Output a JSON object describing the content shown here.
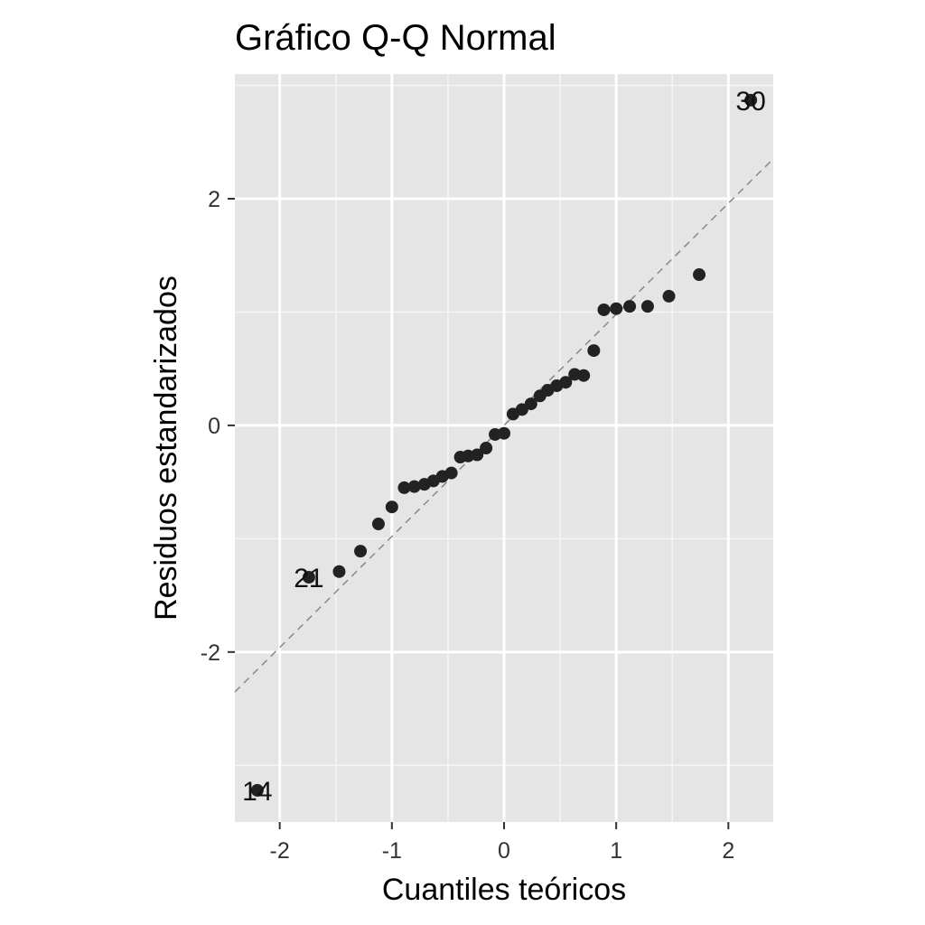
{
  "chart_data": {
    "type": "scatter",
    "title": "Gráfico Q-Q Normal",
    "xlabel": "Cuantiles teóricos",
    "ylabel": "Residuos estandarizados",
    "xlim": [
      -2.4,
      2.4
    ],
    "ylim": [
      -3.5,
      3.1
    ],
    "x_ticks": [
      -2,
      -1,
      0,
      1,
      2
    ],
    "y_ticks": [
      -2,
      0,
      2
    ],
    "x_tick_labels": [
      "-2",
      "-1",
      "0",
      "1",
      "2"
    ],
    "y_tick_labels": [
      "-2",
      "0",
      "2"
    ],
    "grid": true,
    "background": "#e5e5e5",
    "point_color": "#222222",
    "reference_line": {
      "slope": 0.98,
      "intercept": 0.0,
      "style": "dashed",
      "color": "#888888"
    },
    "points": [
      {
        "x": -2.2,
        "y": -3.22
      },
      {
        "x": -1.74,
        "y": -1.34
      },
      {
        "x": -1.47,
        "y": -1.29
      },
      {
        "x": -1.28,
        "y": -1.11
      },
      {
        "x": -1.12,
        "y": -0.87
      },
      {
        "x": -1.0,
        "y": -0.72
      },
      {
        "x": -0.89,
        "y": -0.55
      },
      {
        "x": -0.8,
        "y": -0.54
      },
      {
        "x": -0.71,
        "y": -0.52
      },
      {
        "x": -0.63,
        "y": -0.49
      },
      {
        "x": -0.55,
        "y": -0.45
      },
      {
        "x": -0.47,
        "y": -0.42
      },
      {
        "x": -0.39,
        "y": -0.28
      },
      {
        "x": -0.32,
        "y": -0.27
      },
      {
        "x": -0.24,
        "y": -0.26
      },
      {
        "x": -0.16,
        "y": -0.2
      },
      {
        "x": -0.08,
        "y": -0.08
      },
      {
        "x": 0.0,
        "y": -0.07
      },
      {
        "x": 0.08,
        "y": 0.1
      },
      {
        "x": 0.16,
        "y": 0.14
      },
      {
        "x": 0.24,
        "y": 0.19
      },
      {
        "x": 0.32,
        "y": 0.26
      },
      {
        "x": 0.39,
        "y": 0.31
      },
      {
        "x": 0.47,
        "y": 0.35
      },
      {
        "x": 0.55,
        "y": 0.38
      },
      {
        "x": 0.63,
        "y": 0.45
      },
      {
        "x": 0.71,
        "y": 0.44
      },
      {
        "x": 0.8,
        "y": 0.66
      },
      {
        "x": 0.89,
        "y": 1.02
      },
      {
        "x": 1.0,
        "y": 1.03
      },
      {
        "x": 1.12,
        "y": 1.05
      },
      {
        "x": 1.28,
        "y": 1.05
      },
      {
        "x": 1.47,
        "y": 1.14
      },
      {
        "x": 1.74,
        "y": 1.33
      },
      {
        "x": 2.2,
        "y": 2.87
      }
    ],
    "annotations": [
      {
        "text": "14",
        "x": -2.2,
        "y": -3.22
      },
      {
        "text": "21",
        "x": -1.74,
        "y": -1.34
      },
      {
        "text": "30",
        "x": 2.2,
        "y": 2.87
      }
    ]
  }
}
